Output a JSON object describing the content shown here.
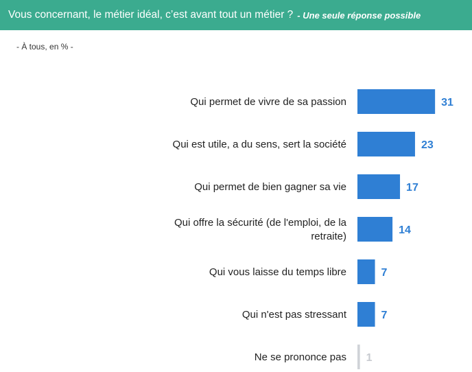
{
  "header": {
    "question": "Vous concernant, le métier idéal, c’est avant tout un métier ?",
    "note": "- Une seule réponse possible"
  },
  "base_note": "- À tous, en % -",
  "colors": {
    "header_bg": "#3bab8f",
    "bar": "#2f7fd4",
    "bar_muted": "#d0d3d8",
    "value_text": "#2f7fd4",
    "value_text_muted": "#c8cbd0"
  },
  "chart_data": {
    "type": "bar",
    "orientation": "horizontal",
    "categories": [
      [
        "Qui permet de vivre de sa passion"
      ],
      [
        "Qui est utile, a du sens, sert la société"
      ],
      [
        "Qui permet de bien gagner sa vie"
      ],
      [
        "Qui offre la sécurité (de l'emploi, de la",
        "retraite)"
      ],
      [
        "Qui vous laisse du temps libre"
      ],
      [
        "Qui n'est pas stressant"
      ],
      [
        "Ne se prononce pas"
      ]
    ],
    "values": [
      31,
      23,
      17,
      14,
      7,
      7,
      1
    ],
    "muted": [
      false,
      false,
      false,
      false,
      false,
      false,
      true
    ],
    "unit": "%",
    "grid": false,
    "legend": "none"
  }
}
